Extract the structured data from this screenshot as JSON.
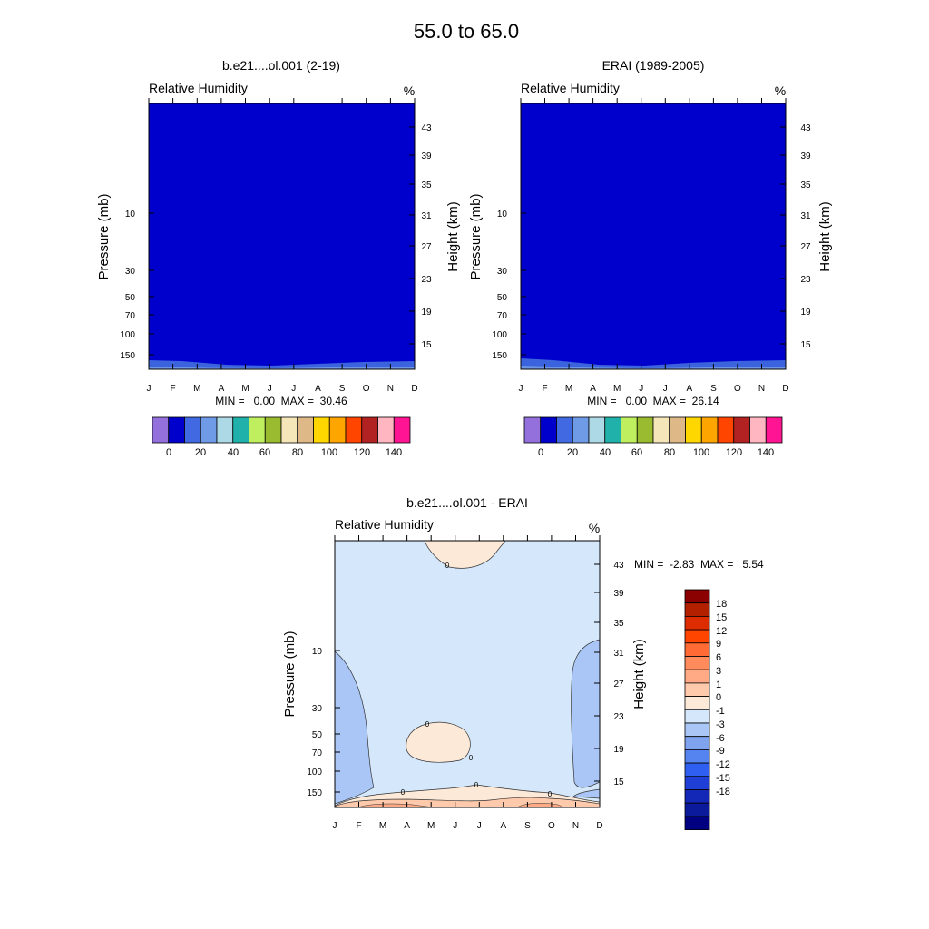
{
  "figure": {
    "title": "55.0 to  65.0",
    "month_labels": [
      "J",
      "F",
      "M",
      "A",
      "M",
      "J",
      "J",
      "A",
      "S",
      "O",
      "N",
      "D"
    ],
    "pressure_ticks": [
      "10",
      "30",
      "50",
      "70",
      "100",
      "150"
    ],
    "height_ticks": [
      "43",
      "39",
      "35",
      "31",
      "27",
      "23",
      "19",
      "15"
    ],
    "ylabel_left": "Pressure (mb)",
    "ylabel_right": "Height (km)",
    "variable_label": "Relative Humidity",
    "units": "%"
  },
  "chart_data": [
    {
      "type": "heatmap",
      "title": "b.e21....ol.001 (2-19)",
      "subtitle": "Relative Humidity",
      "units": "%",
      "x": [
        "J",
        "F",
        "M",
        "A",
        "M",
        "J",
        "J",
        "A",
        "S",
        "O",
        "N",
        "D"
      ],
      "xlabel": "",
      "ylabel": "Pressure (mb)",
      "ylabel_right": "Height (km)",
      "pressure_ticks": [
        10,
        30,
        50,
        70,
        100,
        150
      ],
      "height_ticks": [
        43,
        39,
        35,
        31,
        27,
        23,
        19,
        15
      ],
      "fill_color": "#0000cc",
      "bottom_band_color": "#3a63dd",
      "min_max_text": "MIN =   0.00  MAX =  30.46",
      "min": 0.0,
      "max": 30.46,
      "colorbar": {
        "colors": [
          "#9370db",
          "#0000cd",
          "#4169e1",
          "#6f9be6",
          "#add8e6",
          "#20b2aa",
          "#bfef5f",
          "#9aba30",
          "#f5e6b9",
          "#deb887",
          "#ffd700",
          "#ffa500",
          "#ff4500",
          "#b22222",
          "#ffb6c1",
          "#ff1493"
        ],
        "labels": [
          "0",
          "20",
          "40",
          "60",
          "80",
          "100",
          "120",
          "140"
        ]
      }
    },
    {
      "type": "heatmap",
      "title": "ERAI (1989-2005)",
      "subtitle": "Relative Humidity",
      "units": "%",
      "x": [
        "J",
        "F",
        "M",
        "A",
        "M",
        "J",
        "J",
        "A",
        "S",
        "O",
        "N",
        "D"
      ],
      "xlabel": "",
      "ylabel": "Pressure (mb)",
      "ylabel_right": "Height (km)",
      "pressure_ticks": [
        10,
        30,
        50,
        70,
        100,
        150
      ],
      "height_ticks": [
        43,
        39,
        35,
        31,
        27,
        23,
        19,
        15
      ],
      "fill_color": "#0000cc",
      "bottom_band_color": "#3a63dd",
      "min_max_text": "MIN =   0.00  MAX =  26.14",
      "min": 0.0,
      "max": 26.14,
      "colorbar": {
        "colors": [
          "#9370db",
          "#0000cd",
          "#4169e1",
          "#6f9be6",
          "#add8e6",
          "#20b2aa",
          "#bfef5f",
          "#9aba30",
          "#f5e6b9",
          "#deb887",
          "#ffd700",
          "#ffa500",
          "#ff4500",
          "#b22222",
          "#ffb6c1",
          "#ff1493"
        ],
        "labels": [
          "0",
          "20",
          "40",
          "60",
          "80",
          "100",
          "120",
          "140"
        ]
      }
    },
    {
      "type": "heatmap",
      "title": "b.e21....ol.001 - ERAI",
      "subtitle": "Relative Humidity",
      "units": "%",
      "x": [
        "J",
        "F",
        "M",
        "A",
        "M",
        "J",
        "J",
        "A",
        "S",
        "O",
        "N",
        "D"
      ],
      "xlabel": "",
      "ylabel": "Pressure (mb)",
      "ylabel_right": "Height (km)",
      "pressure_ticks": [
        10,
        30,
        50,
        70,
        100,
        150
      ],
      "height_ticks": [
        43,
        39,
        35,
        31,
        27,
        23,
        19,
        15
      ],
      "min_max_text": "MIN =  -2.83  MAX =   5.54",
      "min": -2.83,
      "max": 5.54,
      "contour_labels": [
        "0",
        "0",
        "0",
        "0",
        "0",
        "0"
      ],
      "colorbar": {
        "colors": [
          "#8b0000",
          "#b22000",
          "#dd2c00",
          "#ff4500",
          "#ff6a35",
          "#ff8a5c",
          "#ffa985",
          "#ffc9ab",
          "#fde9d8",
          "#d5e8fb",
          "#a9c6f6",
          "#7fa3ee",
          "#5583ef",
          "#2f5ff0",
          "#1f3fd6",
          "#1428b7",
          "#0a1a9a",
          "#000080"
        ],
        "labels": [
          "18",
          "15",
          "12",
          "9",
          "6",
          "3",
          "1",
          "0",
          "-1",
          "-3",
          "-6",
          "-9",
          "-12",
          "-15",
          "-18"
        ]
      }
    }
  ]
}
